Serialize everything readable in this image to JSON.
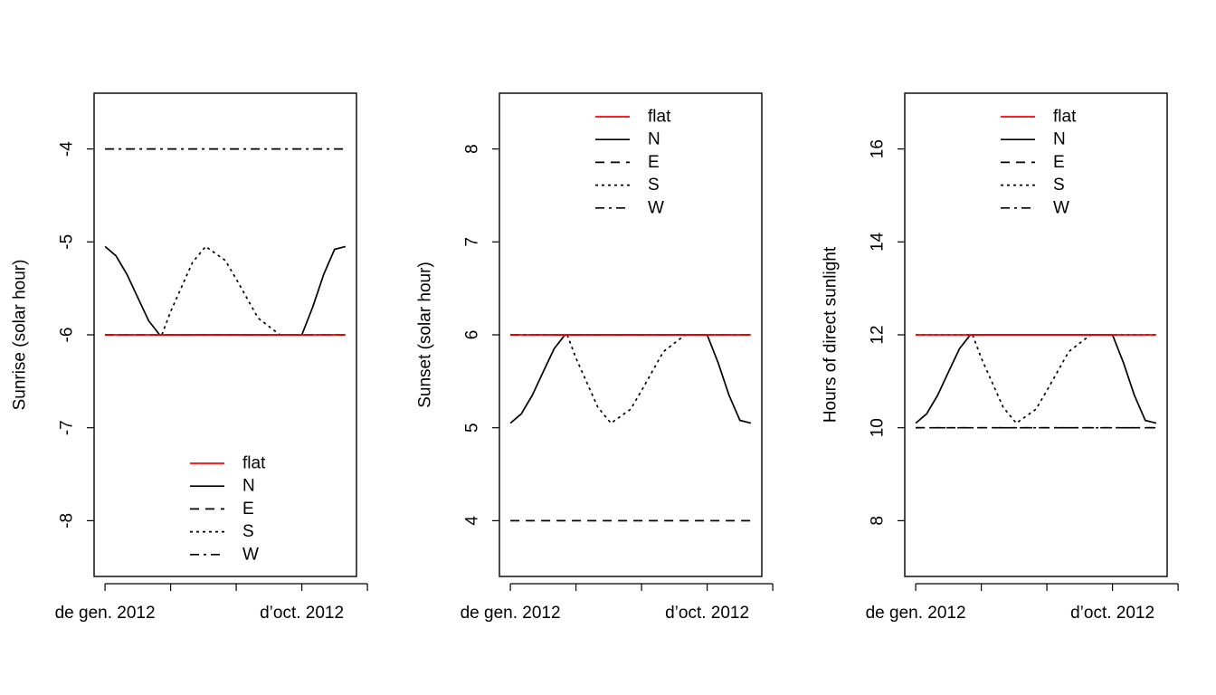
{
  "colors": {
    "flat": "#ff0000",
    "N": "#000000",
    "E": "#000000",
    "S": "#000000",
    "W": "#000000"
  },
  "legend_entries": [
    "flat",
    "N",
    "E",
    "S",
    "W"
  ],
  "x_tick_labels": [
    "de gen. 2012",
    "d'oct. 2012"
  ],
  "chart_data": [
    {
      "type": "line",
      "ylabel": "Sunrise (solar hour)",
      "ylim": [
        -8.6,
        -3.4
      ],
      "yticks": [
        -8,
        -7,
        -6,
        -5,
        -4
      ],
      "ytick_labels": [
        "-8",
        "-7",
        "-6",
        "-5",
        "-4"
      ],
      "x_unit": "month of 2012",
      "xlim": [
        0.5,
        12.5
      ],
      "xticks": [
        1,
        4,
        7,
        10,
        13
      ],
      "xtick_labels": [
        "de gen. 2012",
        "",
        "",
        "d’oct. 2012",
        ""
      ],
      "legend_position": "bottom",
      "series": [
        {
          "name": "flat",
          "color": "#ff0000",
          "dash": "solid",
          "x": [
            1,
            12
          ],
          "y": [
            -6,
            -6
          ]
        },
        {
          "name": "N",
          "color": "#000000",
          "dash": "solid",
          "x": [
            1,
            1.5,
            2,
            2.5,
            3,
            3.5,
            4,
            5,
            6,
            7,
            8,
            9,
            10,
            10.5,
            11,
            11.5,
            12
          ],
          "y": [
            -5.05,
            -5.15,
            -5.35,
            -5.6,
            -5.85,
            -6,
            -6,
            -6,
            -6,
            -6,
            -6,
            -6,
            -6,
            -5.7,
            -5.35,
            -5.08,
            -5.05
          ]
        },
        {
          "name": "E",
          "color": "#000000",
          "dash": "dashed",
          "x": [
            1,
            12
          ],
          "y": [
            -6,
            -6
          ]
        },
        {
          "name": "S",
          "color": "#000000",
          "dash": "dotted",
          "x": [
            1,
            2,
            3,
            3.6,
            4,
            5,
            5.6,
            6.5,
            7,
            8,
            9,
            9.6,
            10,
            11,
            12
          ],
          "y": [
            -6,
            -6,
            -6,
            -6,
            -5.75,
            -5.22,
            -5.05,
            -5.2,
            -5.4,
            -5.82,
            -6,
            -6,
            -6,
            -6,
            -6
          ]
        },
        {
          "name": "W",
          "color": "#000000",
          "dash": "dashdot",
          "x": [
            1,
            12
          ],
          "y": [
            -4,
            -4
          ]
        }
      ]
    },
    {
      "type": "line",
      "ylabel": "Sunset (solar hour)",
      "ylim": [
        3.4,
        8.6
      ],
      "yticks": [
        4,
        5,
        6,
        7,
        8
      ],
      "ytick_labels": [
        "4",
        "5",
        "6",
        "7",
        "8"
      ],
      "x_unit": "month of 2012",
      "xlim": [
        0.5,
        12.5
      ],
      "xticks": [
        1,
        4,
        7,
        10,
        13
      ],
      "xtick_labels": [
        "de gen. 2012",
        "",
        "",
        "d’oct. 2012",
        ""
      ],
      "legend_position": "top",
      "series": [
        {
          "name": "flat",
          "color": "#ff0000",
          "dash": "solid",
          "x": [
            1,
            12
          ],
          "y": [
            6,
            6
          ]
        },
        {
          "name": "N",
          "color": "#000000",
          "dash": "solid",
          "x": [
            1,
            1.5,
            2,
            2.5,
            3,
            3.5,
            4,
            5,
            6,
            7,
            8,
            9,
            10,
            10.5,
            11,
            11.5,
            12
          ],
          "y": [
            5.05,
            5.15,
            5.35,
            5.6,
            5.85,
            6,
            6,
            6,
            6,
            6,
            6,
            6,
            6,
            5.7,
            5.35,
            5.08,
            5.05
          ]
        },
        {
          "name": "E",
          "color": "#000000",
          "dash": "dashed",
          "x": [
            1,
            12
          ],
          "y": [
            4,
            4
          ]
        },
        {
          "name": "S",
          "color": "#000000",
          "dash": "dotted",
          "x": [
            1,
            2,
            3,
            3.6,
            4,
            5,
            5.6,
            6.5,
            7,
            8,
            9,
            9.6,
            10,
            11,
            12
          ],
          "y": [
            6,
            6,
            6,
            6,
            5.75,
            5.22,
            5.05,
            5.2,
            5.4,
            5.82,
            6,
            6,
            6,
            6,
            6
          ]
        },
        {
          "name": "W",
          "color": "#000000",
          "dash": "dashdot",
          "x": [
            1,
            12
          ],
          "y": [
            6,
            6
          ]
        }
      ]
    },
    {
      "type": "line",
      "ylabel": "Hours of direct sunlight",
      "ylim": [
        6.8,
        17.2
      ],
      "yticks": [
        8,
        10,
        12,
        14,
        16
      ],
      "ytick_labels": [
        "8",
        "10",
        "12",
        "14",
        "16"
      ],
      "x_unit": "month of 2012",
      "xlim": [
        0.5,
        12.5
      ],
      "xticks": [
        1,
        4,
        7,
        10,
        13
      ],
      "xtick_labels": [
        "de gen. 2012",
        "",
        "",
        "d’oct. 2012",
        ""
      ],
      "legend_position": "top",
      "series": [
        {
          "name": "flat",
          "color": "#ff0000",
          "dash": "solid",
          "x": [
            1,
            12
          ],
          "y": [
            12,
            12
          ]
        },
        {
          "name": "N",
          "color": "#000000",
          "dash": "solid",
          "x": [
            1,
            1.5,
            2,
            2.5,
            3,
            3.5,
            4,
            5,
            6,
            7,
            8,
            9,
            10,
            10.5,
            11,
            11.5,
            12
          ],
          "y": [
            10.1,
            10.3,
            10.7,
            11.2,
            11.7,
            12,
            12,
            12,
            12,
            12,
            12,
            12,
            12,
            11.4,
            10.7,
            10.16,
            10.1
          ]
        },
        {
          "name": "E",
          "color": "#000000",
          "dash": "dashed",
          "x": [
            1,
            12
          ],
          "y": [
            10,
            10
          ]
        },
        {
          "name": "S",
          "color": "#000000",
          "dash": "dotted",
          "x": [
            1,
            2,
            3,
            3.6,
            4,
            5,
            5.6,
            6.5,
            7,
            8,
            9,
            9.6,
            10,
            11,
            12
          ],
          "y": [
            12,
            12,
            12,
            12,
            11.5,
            10.44,
            10.1,
            10.4,
            10.8,
            11.64,
            12,
            12,
            12,
            12,
            12
          ]
        },
        {
          "name": "W",
          "color": "#000000",
          "dash": "dashdot",
          "x": [
            1,
            12
          ],
          "y": [
            10,
            10
          ]
        }
      ]
    }
  ]
}
